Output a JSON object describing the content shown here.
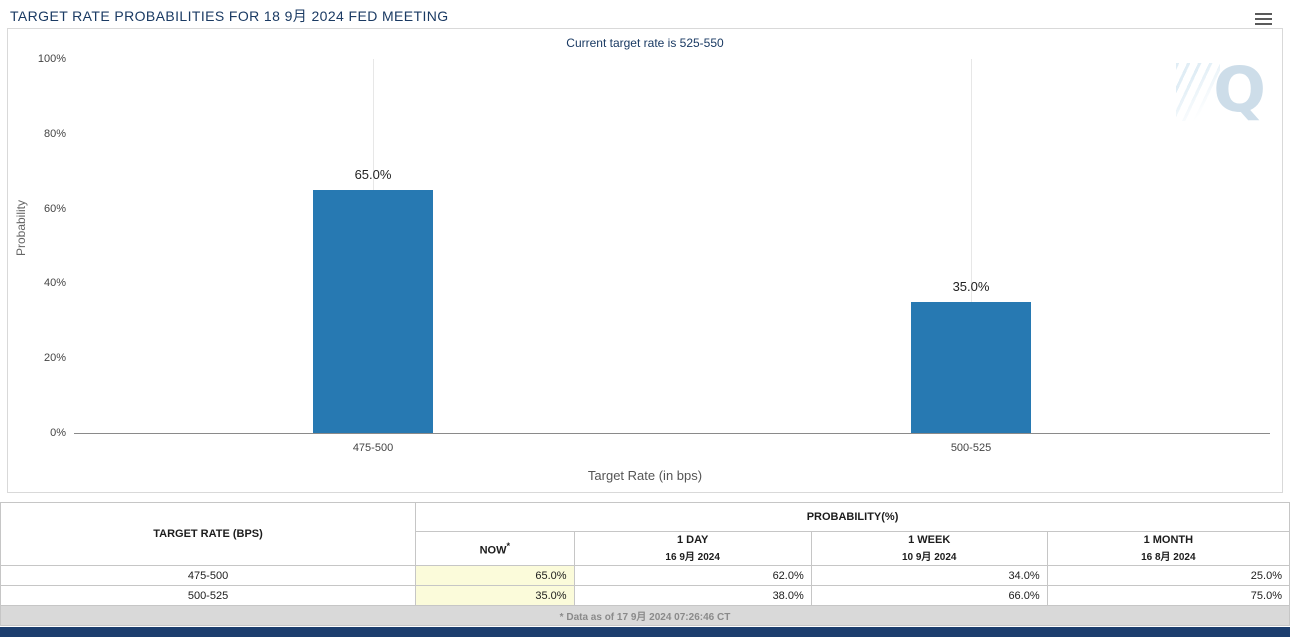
{
  "header": {
    "title": "TARGET RATE PROBABILITIES FOR 18 9月 2024 FED MEETING"
  },
  "chart": {
    "subtitle": "Current target rate is 525-550",
    "watermark_letter": "Q"
  },
  "chart_data": {
    "type": "bar",
    "title": "TARGET RATE PROBABILITIES FOR 18 9月 2024 FED MEETING",
    "subtitle": "Current target rate is 525-550",
    "categories": [
      "475-500",
      "500-525"
    ],
    "values": [
      65.0,
      35.0
    ],
    "value_labels": [
      "65.0%",
      "35.0%"
    ],
    "xlabel": "Target Rate (in bps)",
    "ylabel": "Probability",
    "ylim": [
      0,
      100
    ],
    "y_ticks": [
      "0%",
      "20%",
      "40%",
      "60%",
      "80%",
      "100%"
    ],
    "bar_color": "#2779b2",
    "grid": "vertical-category-lines",
    "legend": "none"
  },
  "table": {
    "rate_header": "TARGET RATE (BPS)",
    "group_header": "PROBABILITY(%)",
    "columns": {
      "now": {
        "label": "NOW",
        "sup": "*"
      },
      "day": {
        "label": "1 DAY",
        "date": "16 9月 2024"
      },
      "week": {
        "label": "1 WEEK",
        "date": "10 9月 2024"
      },
      "month": {
        "label": "1 MONTH",
        "date": "16 8月 2024"
      }
    },
    "rows": [
      {
        "rate": "475-500",
        "now": "65.0%",
        "day": "62.0%",
        "week": "34.0%",
        "month": "25.0%"
      },
      {
        "rate": "500-525",
        "now": "35.0%",
        "day": "38.0%",
        "week": "66.0%",
        "month": "75.0%"
      }
    ],
    "footnote": "* Data as of 17 9月 2024 07:26:46 CT"
  }
}
